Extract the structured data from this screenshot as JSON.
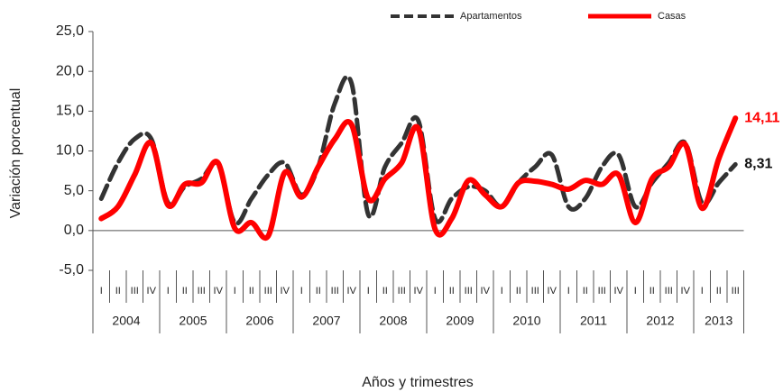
{
  "chart_data": {
    "type": "line",
    "y_label": "Variación porcentual",
    "x_label": "Años y trimestres",
    "categories": [
      "I",
      "II",
      "III",
      "IV",
      "I",
      "II",
      "III",
      "IV",
      "I",
      "II",
      "III",
      "IV",
      "I",
      "II",
      "III",
      "IV",
      "I",
      "II",
      "III",
      "IV",
      "I",
      "II",
      "III",
      "IV",
      "I",
      "II",
      "III",
      "IV",
      "I",
      "II",
      "III",
      "IV",
      "I",
      "II",
      "III",
      "IV",
      "I",
      "II",
      "III"
    ],
    "years": [
      "2004",
      "2005",
      "2006",
      "2007",
      "2008",
      "2009",
      "2010",
      "2011",
      "2012",
      "2013"
    ],
    "series": [
      {
        "name": "Apartamentos",
        "color": "#333333",
        "dashed": true,
        "values": [
          4,
          8.5,
          11.5,
          11.5,
          3.5,
          5.5,
          6.5,
          8.3,
          1,
          4,
          7,
          8.5,
          4.5,
          8,
          16,
          18.5,
          2,
          8,
          11,
          13.8,
          1.5,
          4,
          5.5,
          5,
          3,
          6,
          8,
          9.5,
          3,
          4,
          8,
          9.5,
          3,
          6,
          8.5,
          11,
          3.5,
          6,
          8.31
        ],
        "value_labels": [
          null,
          null,
          null,
          null,
          null,
          null,
          null,
          null,
          null,
          null,
          null,
          null,
          null,
          null,
          null,
          null,
          null,
          null,
          null,
          null,
          null,
          null,
          null,
          null,
          null,
          null,
          null,
          null,
          null,
          null,
          null,
          null,
          null,
          null,
          null,
          null,
          null,
          null,
          "8,31"
        ]
      },
      {
        "name": "Casas",
        "color": "#ff0000",
        "dashed": false,
        "values": [
          1.5,
          3,
          7,
          11,
          3.2,
          5.8,
          6,
          8.5,
          0.3,
          1,
          -0.7,
          7.3,
          4.2,
          8,
          11.5,
          13.3,
          4,
          6.5,
          8.5,
          12.8,
          0.2,
          1.5,
          6.3,
          4.5,
          3,
          6,
          6.2,
          5.8,
          5.2,
          6.3,
          5.8,
          7,
          1,
          6.5,
          8,
          10.8,
          2.8,
          9,
          14.11
        ],
        "value_labels": [
          null,
          null,
          null,
          null,
          null,
          null,
          null,
          null,
          null,
          null,
          null,
          null,
          null,
          null,
          null,
          null,
          null,
          null,
          null,
          null,
          null,
          null,
          null,
          null,
          null,
          null,
          null,
          null,
          null,
          null,
          null,
          null,
          null,
          null,
          null,
          null,
          null,
          null,
          "14,11"
        ]
      }
    ],
    "ylim": [
      -5,
      25
    ],
    "yticks": [
      {
        "value": -5,
        "label": "-5,0"
      },
      {
        "value": 0,
        "label": "0,0"
      },
      {
        "value": 5,
        "label": "5,0"
      },
      {
        "value": 10,
        "label": "10,0"
      },
      {
        "value": 15,
        "label": "15,0"
      },
      {
        "value": 20,
        "label": "20,0"
      },
      {
        "value": 25,
        "label": "25,0"
      }
    ],
    "legend": "top"
  }
}
